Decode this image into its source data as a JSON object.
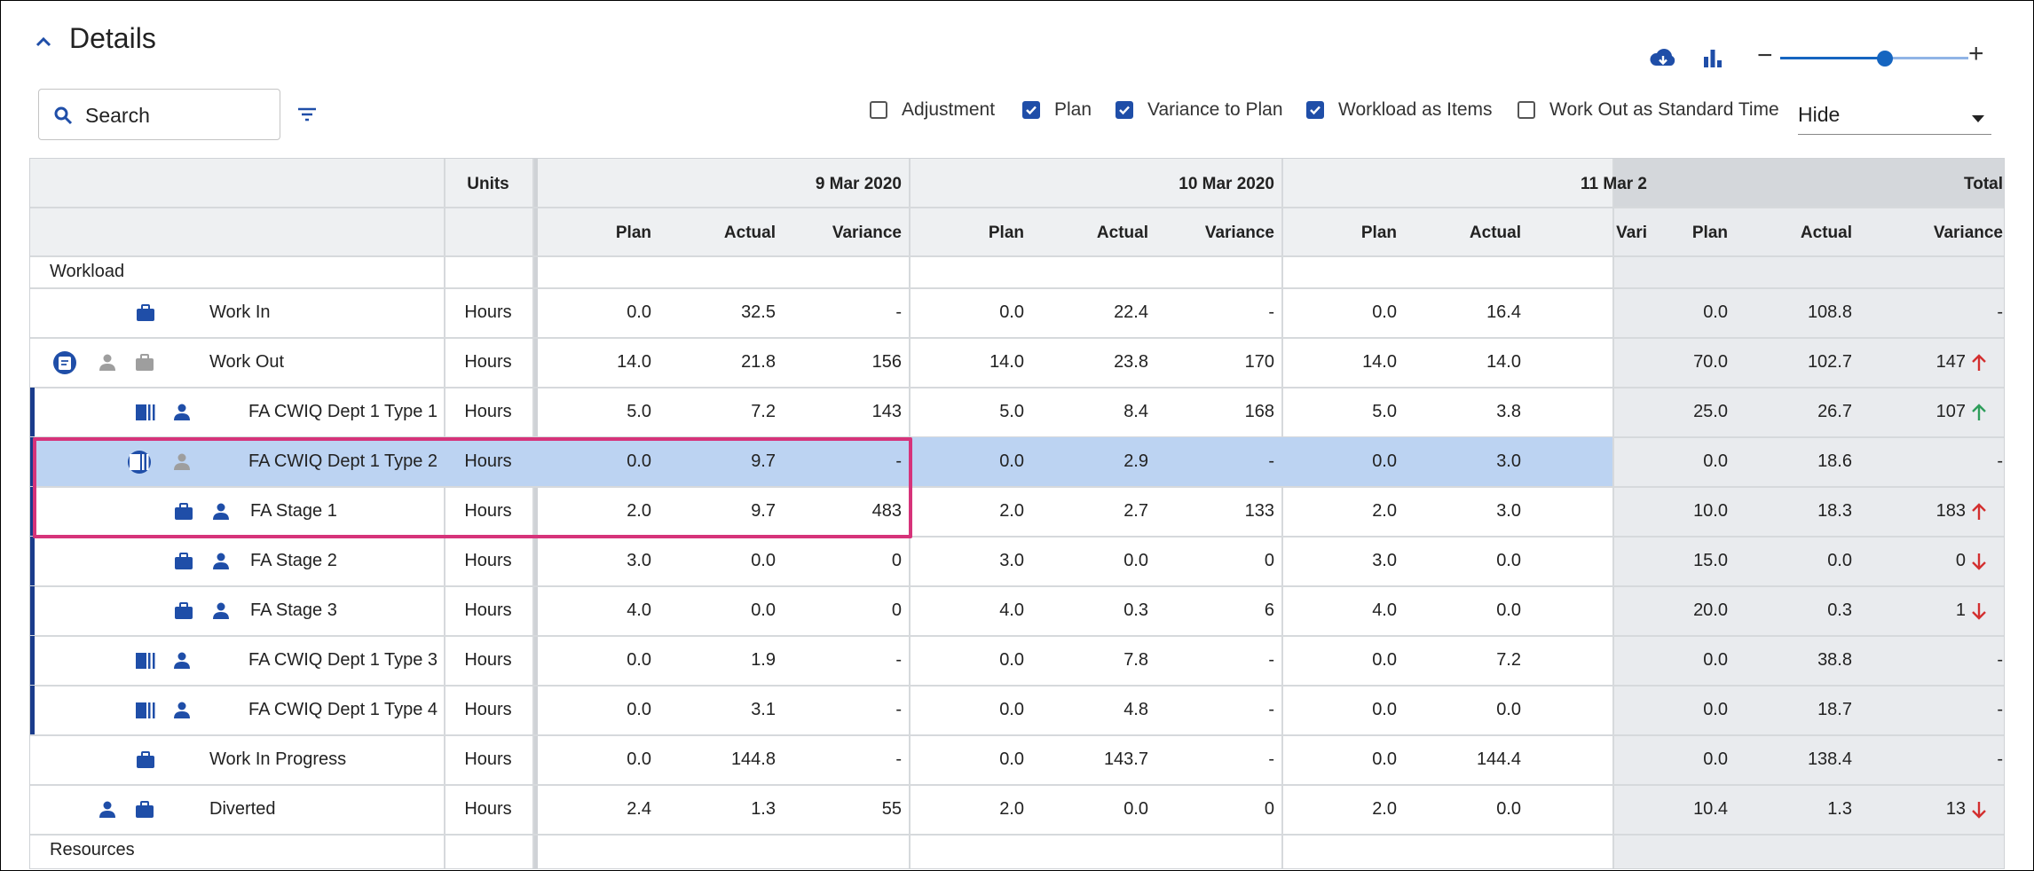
{
  "header": {
    "title": "Details"
  },
  "search": {
    "placeholder": "Search"
  },
  "options": [
    {
      "label": "Adjustment",
      "checked": false
    },
    {
      "label": "Plan",
      "checked": true
    },
    {
      "label": "Variance to Plan",
      "checked": true
    },
    {
      "label": "Workload as Items",
      "checked": true
    },
    {
      "label": "Work Out as Standard Time",
      "checked": false
    }
  ],
  "select": {
    "value": "Hide"
  },
  "zoom": {
    "level_fraction": 0.57
  },
  "colors": {
    "accent": "#1f4ea8",
    "selected_row": "#bcd3f2",
    "highlight_border": "#d6337a",
    "total_bg": "#e9ebee",
    "up_red": "#d32f2f",
    "up_green": "#2e9e5b"
  },
  "table": {
    "units_header": "Units",
    "dates": [
      "9 Mar 2020",
      "10 Mar 2020",
      "11 Mar 2"
    ],
    "total_header": "Total",
    "sub_headers": [
      "Plan",
      "Actual",
      "Variance"
    ],
    "third_variance_header": "Vari",
    "sections": [
      "Workload",
      "Resources"
    ],
    "rows": [
      {
        "label": "Work In",
        "units": "Hours",
        "icons": [
          "briefcase-icon"
        ],
        "cells": [
          "0.0",
          "32.5",
          "-",
          "0.0",
          "22.4",
          "-",
          "0.0",
          "16.4",
          ""
        ],
        "total": [
          "0.0",
          "108.8",
          "-"
        ],
        "trend": ""
      },
      {
        "label": "Work Out",
        "units": "Hours",
        "icons": [
          "document-icon",
          "person-icon",
          "briefcase-icon"
        ],
        "cells": [
          "14.0",
          "21.8",
          "156",
          "14.0",
          "23.8",
          "170",
          "14.0",
          "14.0",
          ""
        ],
        "total": [
          "70.0",
          "102.7",
          "147"
        ],
        "trend": "up-red"
      },
      {
        "label": "FA CWIQ Dept 1 Type 1",
        "units": "Hours",
        "icons": [
          "doc-type-icon",
          "person-icon"
        ],
        "cells": [
          "5.0",
          "7.2",
          "143",
          "5.0",
          "8.4",
          "168",
          "5.0",
          "3.8",
          ""
        ],
        "total": [
          "25.0",
          "26.7",
          "107"
        ],
        "trend": "up-green"
      },
      {
        "label": "FA CWIQ Dept 1 Type 2",
        "units": "Hours",
        "icons": [
          "doc-type-icon",
          "person-icon"
        ],
        "cells": [
          "0.0",
          "9.7",
          "-",
          "0.0",
          "2.9",
          "-",
          "0.0",
          "3.0",
          ""
        ],
        "total": [
          "0.0",
          "18.6",
          "-"
        ],
        "trend": ""
      },
      {
        "label": "FA Stage 1",
        "units": "Hours",
        "icons": [
          "briefcase-icon",
          "person-icon"
        ],
        "cells": [
          "2.0",
          "9.7",
          "483",
          "2.0",
          "2.7",
          "133",
          "2.0",
          "3.0",
          ""
        ],
        "total": [
          "10.0",
          "18.3",
          "183"
        ],
        "trend": "up-red"
      },
      {
        "label": "FA Stage 2",
        "units": "Hours",
        "icons": [
          "briefcase-icon",
          "person-icon"
        ],
        "cells": [
          "3.0",
          "0.0",
          "0",
          "3.0",
          "0.0",
          "0",
          "3.0",
          "0.0",
          ""
        ],
        "total": [
          "15.0",
          "0.0",
          "0"
        ],
        "trend": "down-red"
      },
      {
        "label": "FA Stage 3",
        "units": "Hours",
        "icons": [
          "briefcase-icon",
          "person-icon"
        ],
        "cells": [
          "4.0",
          "0.0",
          "0",
          "4.0",
          "0.3",
          "6",
          "4.0",
          "0.0",
          ""
        ],
        "total": [
          "20.0",
          "0.3",
          "1"
        ],
        "trend": "down-red"
      },
      {
        "label": "FA CWIQ Dept 1 Type 3",
        "units": "Hours",
        "icons": [
          "doc-type-icon",
          "person-icon"
        ],
        "cells": [
          "0.0",
          "1.9",
          "-",
          "0.0",
          "7.8",
          "-",
          "0.0",
          "7.2",
          ""
        ],
        "total": [
          "0.0",
          "38.8",
          "-"
        ],
        "trend": ""
      },
      {
        "label": "FA CWIQ Dept 1 Type 4",
        "units": "Hours",
        "icons": [
          "doc-type-icon",
          "person-icon"
        ],
        "cells": [
          "0.0",
          "3.1",
          "-",
          "0.0",
          "4.8",
          "-",
          "0.0",
          "0.0",
          ""
        ],
        "total": [
          "0.0",
          "18.7",
          "-"
        ],
        "trend": ""
      },
      {
        "label": "Work In Progress",
        "units": "Hours",
        "icons": [
          "briefcase-icon"
        ],
        "cells": [
          "0.0",
          "144.8",
          "-",
          "0.0",
          "143.7",
          "-",
          "0.0",
          "144.4",
          ""
        ],
        "total": [
          "0.0",
          "138.4",
          "-"
        ],
        "trend": ""
      },
      {
        "label": "Diverted",
        "units": "Hours",
        "icons": [
          "person-icon",
          "briefcase-icon"
        ],
        "cells": [
          "2.4",
          "1.3",
          "55",
          "2.0",
          "0.0",
          "0",
          "2.0",
          "0.0",
          ""
        ],
        "total": [
          "10.4",
          "1.3",
          "13"
        ],
        "trend": "down-red"
      }
    ]
  }
}
